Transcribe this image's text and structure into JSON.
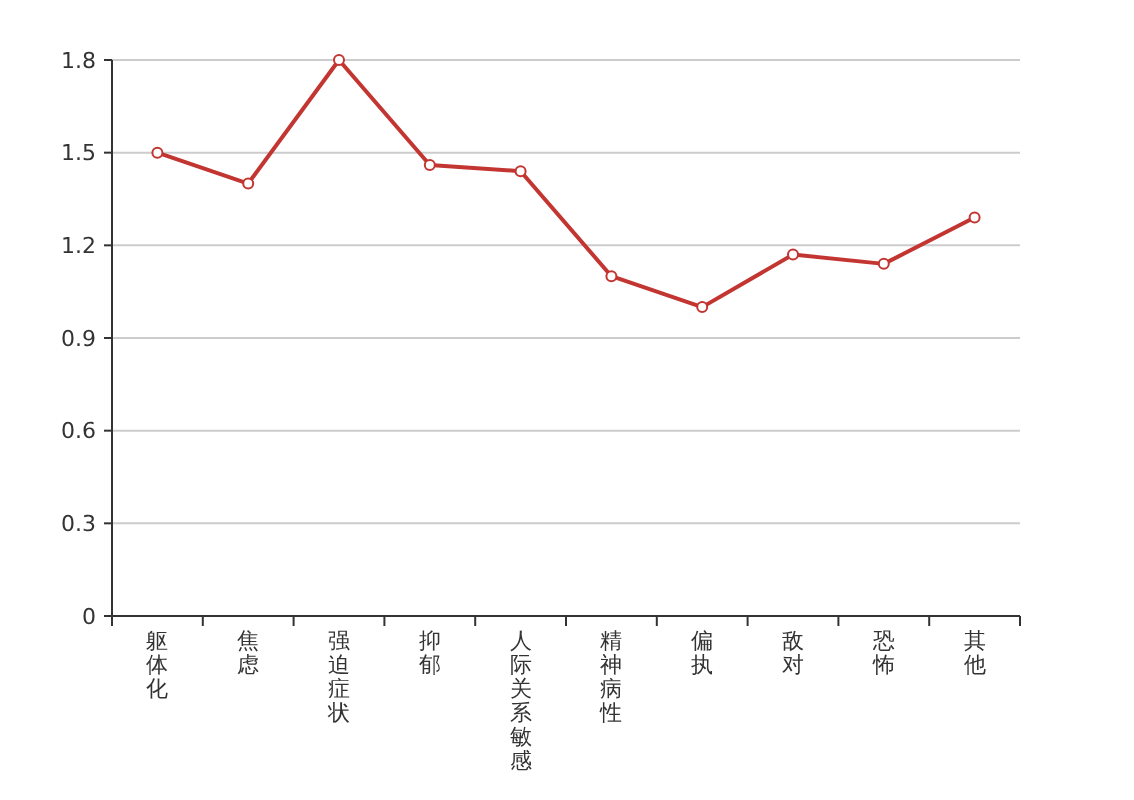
{
  "chart_data": {
    "type": "line",
    "categories": [
      "躯体化",
      "焦虑",
      "强迫症状",
      "抑郁",
      "人际关系敏感",
      "精神病性",
      "偏执",
      "敌对",
      "恐怖",
      "其他"
    ],
    "series": [
      {
        "color": "#c23531",
        "values": [
          1.5,
          1.4,
          1.8,
          1.46,
          1.44,
          1.1,
          1.0,
          1.17,
          1.14,
          1.29
        ]
      }
    ],
    "ylim": [
      0,
      1.8
    ],
    "yticks": [
      0,
      0.3,
      0.6,
      0.9,
      1.2,
      1.5,
      1.8
    ],
    "grid": "y",
    "marker": "circle",
    "line_style": "solid"
  }
}
